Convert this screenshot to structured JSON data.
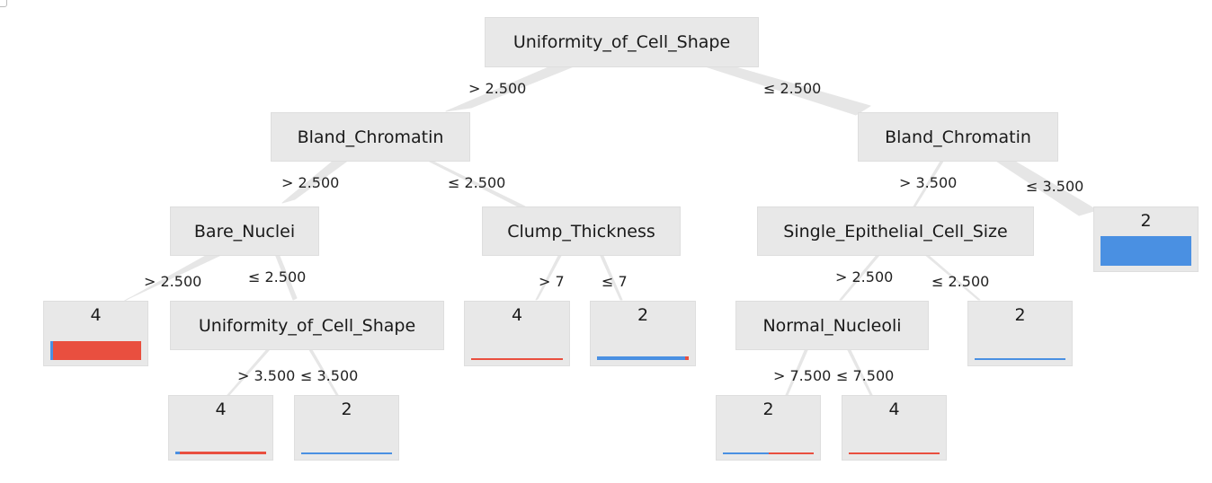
{
  "colors": {
    "class_2": "#4a90e2",
    "class_4": "#e94f3f",
    "edge": "#e6e6e6",
    "node_bg": "#e8e8e8"
  },
  "nodes": {
    "root": "Uniformity_of_Cell_Shape",
    "left_bland": "Bland_Chromatin",
    "right_bland": "Bland_Chromatin",
    "bare_nuclei": "Bare_Nuclei",
    "clump": "Clump_Thickness",
    "single_epi": "Single_Epithelial_Cell_Size",
    "uniformity2": "Uniformity_of_Cell_Shape",
    "normal_nucleoli": "Normal_Nucleoli"
  },
  "leaves": {
    "bare_gt": {
      "label": "4",
      "fraction_class_2": 0.03
    },
    "unif_gt": {
      "label": "4",
      "fraction_class_2": 0.05
    },
    "unif_le": {
      "label": "2",
      "fraction_class_2": 1.0
    },
    "clump_gt": {
      "label": "4",
      "fraction_class_2": 0.0
    },
    "clump_le": {
      "label": "2",
      "fraction_class_2": 0.96
    },
    "nn_gt": {
      "label": "2",
      "fraction_class_2": 0.5
    },
    "nn_le": {
      "label": "4",
      "fraction_class_2": 0.0
    },
    "single_le": {
      "label": "2",
      "fraction_class_2": 1.0
    },
    "right_le": {
      "label": "2",
      "fraction_class_2": 1.0
    }
  },
  "edges": {
    "root_left": "> 2.500",
    "root_right": "≤ 2.500",
    "lb_left": "> 2.500",
    "lb_right": "≤ 2.500",
    "bn_left": "> 2.500",
    "bn_right": "≤ 2.500",
    "u2_left": "> 3.500",
    "u2_right": "≤ 3.500",
    "ct_left": "> 7",
    "ct_right": "≤ 7",
    "rb_left": "> 3.500",
    "rb_right": "≤ 3.500",
    "se_left": "> 2.500",
    "se_right": "≤ 2.500",
    "nn_left": "> 7.500",
    "nn_right": "≤ 7.500"
  }
}
